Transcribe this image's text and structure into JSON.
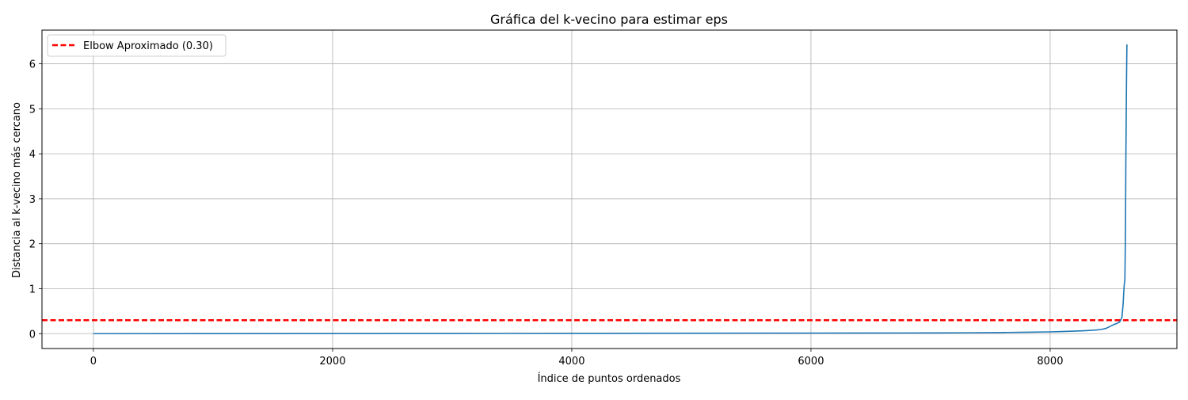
{
  "chart_data": {
    "type": "line",
    "title": "Gráfica del k-vecino para estimar eps",
    "xlabel": "Índice de puntos ordenados",
    "ylabel": "Distancia al k-vecino más cercano",
    "xlim": [
      -430,
      9060
    ],
    "ylim": [
      -0.33,
      6.75
    ],
    "xticks": [
      0,
      2000,
      4000,
      6000,
      8000
    ],
    "xtick_labels": [
      "0",
      "2000",
      "4000",
      "6000",
      "8000"
    ],
    "yticks": [
      0,
      1,
      2,
      3,
      4,
      5,
      6
    ],
    "ytick_labels": [
      "0",
      "1",
      "2",
      "3",
      "4",
      "5",
      "6"
    ],
    "grid": true,
    "legend_position": "top-left",
    "series": [
      {
        "color": "#1f77b4",
        "x": [
          0,
          1000,
          2000,
          3000,
          4000,
          5000,
          6000,
          6500,
          7000,
          7300,
          7600,
          7800,
          8000,
          8100,
          8200,
          8300,
          8380,
          8430,
          8470,
          8500,
          8530,
          8560,
          8580,
          8590,
          8600,
          8605,
          8610,
          8615,
          8620,
          8625,
          8630,
          8633,
          8636,
          8638,
          8640,
          8642
        ],
        "y": [
          0.0,
          0.002,
          0.004,
          0.006,
          0.008,
          0.01,
          0.012,
          0.014,
          0.017,
          0.02,
          0.026,
          0.032,
          0.04,
          0.047,
          0.056,
          0.068,
          0.08,
          0.095,
          0.12,
          0.16,
          0.2,
          0.23,
          0.26,
          0.3,
          0.36,
          0.5,
          0.65,
          0.9,
          1.1,
          1.2,
          2.3,
          3.8,
          4.8,
          5.5,
          6.0,
          6.43
        ]
      }
    ],
    "reference_lines": [
      {
        "orientation": "horizontal",
        "y": 0.3,
        "label": "Elbow Aproximado (0.30)",
        "color": "#ff0000",
        "style": "dashed"
      }
    ]
  }
}
